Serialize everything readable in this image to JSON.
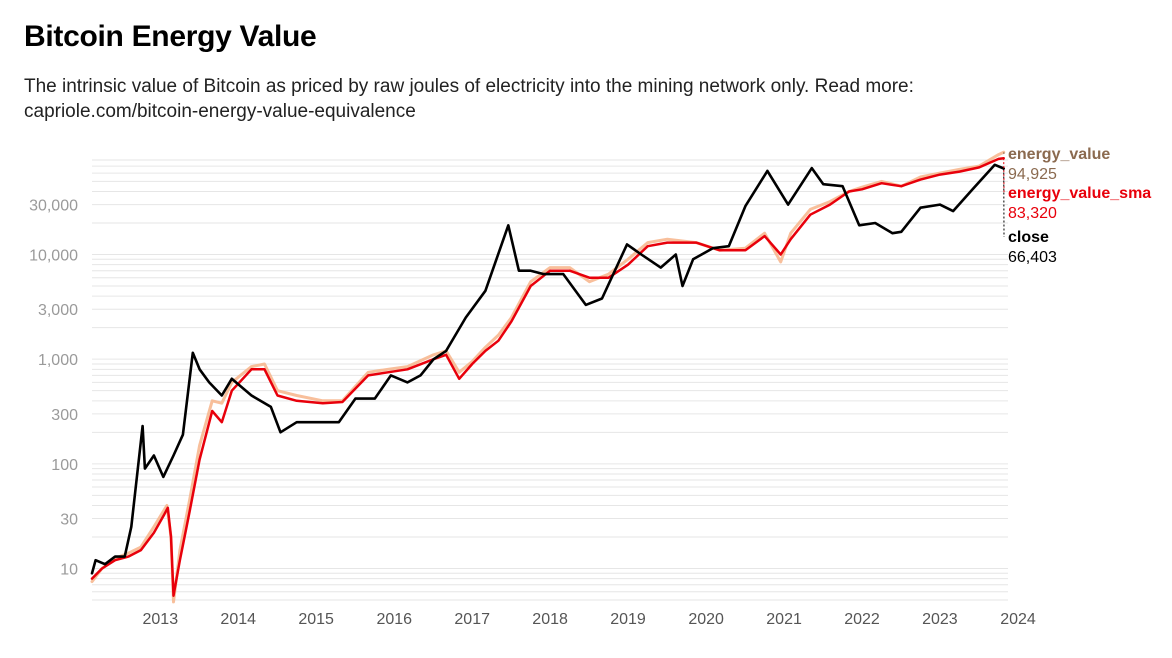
{
  "title": "Bitcoin Energy Value",
  "subtitle_line1": "The intrinsic value of Bitcoin as priced by raw joules of electricity into the mining network only. Read more:",
  "subtitle_line2": "capriole.com/bitcoin-energy-value-equivalence",
  "colors": {
    "energy_value": "#f7b48a",
    "energy_value_label": "#8b6a4f",
    "energy_value_sma": "#e8000b",
    "close": "#000000",
    "grid": "#e6e6e6"
  },
  "chart_data": {
    "type": "line",
    "y_scale": "log",
    "ylim": [
      5,
      80000
    ],
    "xlim": [
      "2012-08-15",
      "2024-05-15"
    ],
    "y_ticks": [
      10,
      30,
      100,
      300,
      1000,
      3000,
      10000,
      30000
    ],
    "y_tick_labels": [
      "10",
      "30",
      "100",
      "300",
      "1,000",
      "3,000",
      "10,000",
      "30,000"
    ],
    "x_tick_labels": [
      "2013",
      "2014",
      "2015",
      "2016",
      "2017",
      "2018",
      "2019",
      "2020",
      "2021",
      "2022",
      "2023",
      "2024"
    ],
    "grid": true,
    "series": [
      {
        "name": "energy_value",
        "last_value_label": "94,925",
        "points": [
          [
            "2012-08-15",
            7.5
          ],
          [
            "2012-10-01",
            10
          ],
          [
            "2012-12-01",
            12.5
          ],
          [
            "2013-02-01",
            14
          ],
          [
            "2013-04-01",
            16
          ],
          [
            "2013-06-01",
            25
          ],
          [
            "2013-08-01",
            40
          ],
          [
            "2013-08-20",
            20
          ],
          [
            "2013-09-01",
            4.8
          ],
          [
            "2013-10-01",
            15
          ],
          [
            "2013-11-15",
            45
          ],
          [
            "2014-01-01",
            150
          ],
          [
            "2014-03-01",
            400
          ],
          [
            "2014-04-15",
            380
          ],
          [
            "2014-06-01",
            600
          ],
          [
            "2014-09-01",
            850
          ],
          [
            "2014-11-01",
            900
          ],
          [
            "2015-01-01",
            500
          ],
          [
            "2015-04-01",
            450
          ],
          [
            "2015-08-01",
            400
          ],
          [
            "2015-11-01",
            400
          ],
          [
            "2016-03-01",
            750
          ],
          [
            "2016-06-01",
            800
          ],
          [
            "2016-09-01",
            850
          ],
          [
            "2017-01-01",
            1100
          ],
          [
            "2017-03-01",
            1200
          ],
          [
            "2017-05-01",
            750
          ],
          [
            "2017-07-01",
            950
          ],
          [
            "2017-09-01",
            1300
          ],
          [
            "2017-11-01",
            1700
          ],
          [
            "2018-01-01",
            2500
          ],
          [
            "2018-04-01",
            5500
          ],
          [
            "2018-07-01",
            7500
          ],
          [
            "2018-10-01",
            7500
          ],
          [
            "2019-01-01",
            5500
          ],
          [
            "2019-04-01",
            6500
          ],
          [
            "2019-07-01",
            9000
          ],
          [
            "2019-10-01",
            13000
          ],
          [
            "2020-01-01",
            14000
          ],
          [
            "2020-05-15",
            13000
          ],
          [
            "2020-09-01",
            11000
          ],
          [
            "2021-01-01",
            11500
          ],
          [
            "2021-04-01",
            16000
          ],
          [
            "2021-06-15",
            8500
          ],
          [
            "2021-08-01",
            16000
          ],
          [
            "2021-11-01",
            27000
          ],
          [
            "2022-02-01",
            32000
          ],
          [
            "2022-05-01",
            40000
          ],
          [
            "2022-07-01",
            44000
          ],
          [
            "2022-10-01",
            50000
          ],
          [
            "2023-01-01",
            45000
          ],
          [
            "2023-04-01",
            55000
          ],
          [
            "2023-07-01",
            60000
          ],
          [
            "2023-10-01",
            65000
          ],
          [
            "2024-01-01",
            70000
          ],
          [
            "2024-04-01",
            90000
          ],
          [
            "2024-04-25",
            94925
          ]
        ]
      },
      {
        "name": "energy_value_sma",
        "last_value_label": "83,320",
        "points": [
          [
            "2012-08-15",
            8
          ],
          [
            "2012-10-01",
            10
          ],
          [
            "2012-12-01",
            12
          ],
          [
            "2013-02-01",
            13
          ],
          [
            "2013-04-01",
            15
          ],
          [
            "2013-06-01",
            22
          ],
          [
            "2013-07-20",
            33
          ],
          [
            "2013-08-05",
            38
          ],
          [
            "2013-08-20",
            20
          ],
          [
            "2013-09-01",
            5.5
          ],
          [
            "2013-10-01",
            12
          ],
          [
            "2013-11-15",
            35
          ],
          [
            "2014-01-01",
            110
          ],
          [
            "2014-03-01",
            320
          ],
          [
            "2014-04-15",
            250
          ],
          [
            "2014-06-01",
            500
          ],
          [
            "2014-09-01",
            800
          ],
          [
            "2014-11-01",
            800
          ],
          [
            "2015-01-01",
            450
          ],
          [
            "2015-04-01",
            400
          ],
          [
            "2015-08-01",
            380
          ],
          [
            "2015-11-01",
            390
          ],
          [
            "2016-03-01",
            700
          ],
          [
            "2016-06-01",
            750
          ],
          [
            "2016-09-01",
            800
          ],
          [
            "2017-01-01",
            1000
          ],
          [
            "2017-03-01",
            1100
          ],
          [
            "2017-05-01",
            650
          ],
          [
            "2017-07-01",
            900
          ],
          [
            "2017-09-01",
            1200
          ],
          [
            "2017-11-01",
            1500
          ],
          [
            "2018-01-01",
            2300
          ],
          [
            "2018-04-01",
            5000
          ],
          [
            "2018-07-01",
            7000
          ],
          [
            "2018-10-01",
            7000
          ],
          [
            "2019-01-01",
            6000
          ],
          [
            "2019-04-01",
            6000
          ],
          [
            "2019-07-01",
            8000
          ],
          [
            "2019-10-01",
            12000
          ],
          [
            "2020-01-01",
            13000
          ],
          [
            "2020-05-15",
            13000
          ],
          [
            "2020-09-01",
            11000
          ],
          [
            "2021-01-01",
            11000
          ],
          [
            "2021-04-01",
            15000
          ],
          [
            "2021-06-15",
            10000
          ],
          [
            "2021-08-01",
            14000
          ],
          [
            "2021-11-01",
            24000
          ],
          [
            "2022-02-01",
            30000
          ],
          [
            "2022-05-01",
            40000
          ],
          [
            "2022-07-01",
            42000
          ],
          [
            "2022-10-01",
            48000
          ],
          [
            "2023-01-01",
            45000
          ],
          [
            "2023-04-01",
            52000
          ],
          [
            "2023-07-01",
            58000
          ],
          [
            "2023-10-01",
            62000
          ],
          [
            "2024-01-01",
            68000
          ],
          [
            "2024-04-01",
            82000
          ],
          [
            "2024-04-25",
            83320
          ]
        ]
      },
      {
        "name": "close",
        "last_value_label": "66,403",
        "points": [
          [
            "2012-08-15",
            9
          ],
          [
            "2012-09-01",
            12
          ],
          [
            "2012-10-15",
            11
          ],
          [
            "2012-12-01",
            13
          ],
          [
            "2013-01-15",
            13
          ],
          [
            "2013-02-15",
            25
          ],
          [
            "2013-04-09",
            230
          ],
          [
            "2013-04-20",
            90
          ],
          [
            "2013-06-01",
            120
          ],
          [
            "2013-07-15",
            75
          ],
          [
            "2013-09-01",
            120
          ],
          [
            "2013-10-15",
            190
          ],
          [
            "2013-11-30",
            1150
          ],
          [
            "2014-01-01",
            800
          ],
          [
            "2014-02-15",
            600
          ],
          [
            "2014-04-15",
            450
          ],
          [
            "2014-06-01",
            650
          ],
          [
            "2014-09-01",
            450
          ],
          [
            "2014-12-01",
            350
          ],
          [
            "2015-01-15",
            200
          ],
          [
            "2015-04-01",
            250
          ],
          [
            "2015-08-01",
            250
          ],
          [
            "2015-10-15",
            250
          ],
          [
            "2016-01-01",
            420
          ],
          [
            "2016-04-01",
            420
          ],
          [
            "2016-06-15",
            700
          ],
          [
            "2016-09-01",
            600
          ],
          [
            "2016-11-01",
            700
          ],
          [
            "2017-01-01",
            1000
          ],
          [
            "2017-03-01",
            1200
          ],
          [
            "2017-06-01",
            2500
          ],
          [
            "2017-09-01",
            4500
          ],
          [
            "2017-12-17",
            19000
          ],
          [
            "2018-02-05",
            7000
          ],
          [
            "2018-04-01",
            7000
          ],
          [
            "2018-06-01",
            6500
          ],
          [
            "2018-09-01",
            6500
          ],
          [
            "2018-12-15",
            3300
          ],
          [
            "2019-03-01",
            3800
          ],
          [
            "2019-06-26",
            12500
          ],
          [
            "2019-09-01",
            10000
          ],
          [
            "2019-12-01",
            7500
          ],
          [
            "2020-02-10",
            10000
          ],
          [
            "2020-03-12",
            5000
          ],
          [
            "2020-05-01",
            9000
          ],
          [
            "2020-08-01",
            11500
          ],
          [
            "2020-10-15",
            12000
          ],
          [
            "2021-01-01",
            29000
          ],
          [
            "2021-04-14",
            63000
          ],
          [
            "2021-07-20",
            30000
          ],
          [
            "2021-11-08",
            67000
          ],
          [
            "2022-01-01",
            47000
          ],
          [
            "2022-04-01",
            45000
          ],
          [
            "2022-06-18",
            19000
          ],
          [
            "2022-09-01",
            20000
          ],
          [
            "2022-11-21",
            16000
          ],
          [
            "2023-01-01",
            16500
          ],
          [
            "2023-04-01",
            28000
          ],
          [
            "2023-07-01",
            30000
          ],
          [
            "2023-09-01",
            26000
          ],
          [
            "2023-12-01",
            42000
          ],
          [
            "2024-03-14",
            72000
          ],
          [
            "2024-04-25",
            66403
          ]
        ]
      }
    ]
  }
}
